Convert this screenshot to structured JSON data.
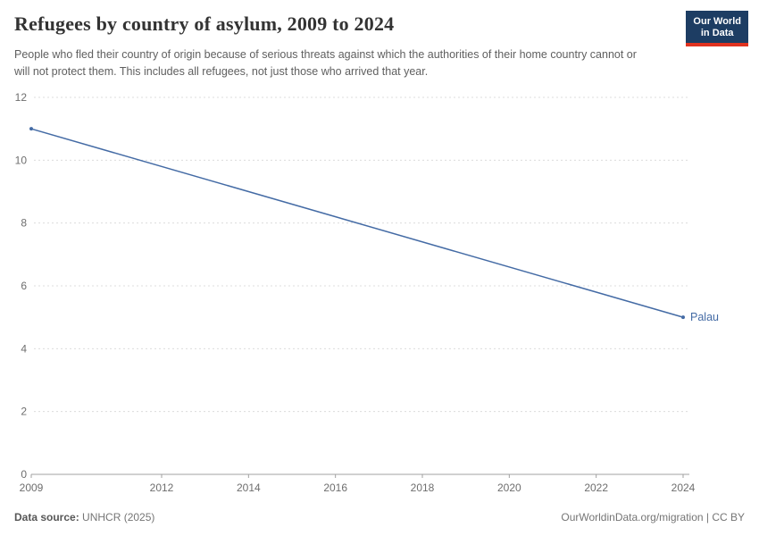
{
  "header": {
    "title": "Refugees by country of asylum, 2009 to 2024",
    "subtitle": "People who fled their country of origin because of serious threats against which the authorities of their home country cannot or will not protect them. This includes all refugees, not just those who arrived that year.",
    "logo": {
      "line1": "Our World",
      "line2": "in Data"
    }
  },
  "colors": {
    "logo_bg": "#1d3d63",
    "logo_underline": "#e0321f",
    "series_line": "#446ba5",
    "axis": "#a1a1a1",
    "gridline": "#dcdcdc",
    "tick_text": "#6e6e6e"
  },
  "chart_data": {
    "type": "line",
    "title": "Refugees by country of asylum, 2009 to 2024",
    "xlabel": "",
    "ylabel": "",
    "x": {
      "min": 2009,
      "max": 2024,
      "ticks": [
        2009,
        2012,
        2014,
        2016,
        2018,
        2020,
        2022,
        2024
      ]
    },
    "y": {
      "min": 0,
      "max": 12,
      "ticks": [
        0,
        2,
        4,
        6,
        8,
        10,
        12
      ]
    },
    "grid": "dashed-horizontal",
    "legend": "end-of-line-label",
    "series": [
      {
        "name": "Palau",
        "color": "#446ba5",
        "points": [
          {
            "x": 2009,
            "y": 11
          },
          {
            "x": 2024,
            "y": 5
          }
        ]
      }
    ]
  },
  "footer": {
    "source_label": "Data source:",
    "source_value": " UNHCR (2025)",
    "credit": "OurWorldinData.org/migration | CC BY"
  }
}
